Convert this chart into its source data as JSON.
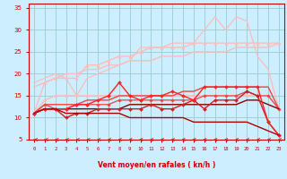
{
  "title": "",
  "xlabel": "Vent moyen/en rafales ( kn/h )",
  "bg_color": "#cceeff",
  "grid_color": "#99cccc",
  "ylim": [
    5,
    36
  ],
  "yticks": [
    5,
    10,
    15,
    20,
    25,
    30,
    35
  ],
  "x_ticks": [
    0,
    1,
    2,
    3,
    4,
    5,
    6,
    7,
    8,
    9,
    10,
    11,
    12,
    13,
    14,
    15,
    16,
    17,
    18,
    19,
    20,
    21,
    22,
    23
  ],
  "lines": [
    {
      "x": [
        0,
        1,
        2,
        3,
        4,
        5,
        6,
        7,
        8,
        9,
        10,
        11,
        12,
        13,
        14,
        15,
        16,
        17,
        18,
        19,
        20,
        21,
        22,
        23
      ],
      "y": [
        17,
        18,
        19,
        20,
        20,
        21,
        21,
        22,
        22,
        23,
        23,
        23,
        24,
        24,
        24,
        25,
        25,
        25,
        25,
        26,
        26,
        26,
        26,
        27
      ],
      "color": "#ffbbbb",
      "lw": 1.0,
      "marker": null
    },
    {
      "x": [
        0,
        1,
        2,
        3,
        4,
        5,
        6,
        7,
        8,
        9,
        10,
        11,
        12,
        13,
        14,
        15,
        16,
        17,
        18,
        19,
        20,
        21,
        22,
        23
      ],
      "y": [
        11,
        18,
        19,
        19,
        19,
        22,
        22,
        23,
        24,
        24,
        25,
        26,
        26,
        26,
        26,
        27,
        27,
        27,
        27,
        27,
        27,
        27,
        27,
        27
      ],
      "color": "#ffbbbb",
      "lw": 1.0,
      "marker": "^",
      "ms": 2.5
    },
    {
      "x": [
        0,
        1,
        2,
        3,
        4,
        5,
        6,
        7,
        8,
        9,
        10,
        11,
        12,
        13,
        14,
        15,
        16,
        17,
        18,
        19,
        20,
        21,
        22,
        23
      ],
      "y": [
        18,
        19,
        20,
        19,
        15,
        19,
        20,
        21,
        22,
        23,
        26,
        26,
        26,
        27,
        27,
        27,
        30,
        33,
        30,
        33,
        32,
        24,
        21,
        12
      ],
      "color": "#ffbbbb",
      "lw": 0.9,
      "marker": null
    },
    {
      "x": [
        0,
        1,
        2,
        3,
        4,
        5,
        6,
        7,
        8,
        9,
        10,
        11,
        12,
        13,
        14,
        15,
        16,
        17,
        18,
        19,
        20,
        21,
        22,
        23
      ],
      "y": [
        11,
        14,
        15,
        15,
        15,
        15,
        15,
        15,
        15,
        15,
        15,
        15,
        15,
        15,
        15,
        15,
        15,
        15,
        15,
        15,
        15,
        15,
        15,
        12
      ],
      "color": "#ffbbbb",
      "lw": 1.0,
      "marker": "o",
      "ms": 2
    },
    {
      "x": [
        0,
        1,
        2,
        3,
        4,
        5,
        6,
        7,
        8,
        9,
        10,
        11,
        12,
        13,
        14,
        15,
        16,
        17,
        18,
        19,
        20,
        21,
        22,
        23
      ],
      "y": [
        11,
        13,
        13,
        13,
        13,
        14,
        14,
        14,
        15,
        15,
        15,
        15,
        15,
        15,
        16,
        16,
        17,
        17,
        17,
        17,
        17,
        17,
        17,
        12
      ],
      "color": "#ee4444",
      "lw": 1.0,
      "marker": null
    },
    {
      "x": [
        0,
        1,
        2,
        3,
        4,
        5,
        6,
        7,
        8,
        9,
        10,
        11,
        12,
        13,
        14,
        15,
        16,
        17,
        18,
        19,
        20,
        21,
        22,
        23
      ],
      "y": [
        11,
        13,
        12,
        12,
        13,
        13,
        13,
        13,
        14,
        14,
        14,
        14,
        14,
        14,
        14,
        14,
        15,
        15,
        15,
        15,
        16,
        15,
        15,
        12
      ],
      "color": "#ee4444",
      "lw": 0.9,
      "marker": "D",
      "ms": 1.8
    },
    {
      "x": [
        0,
        1,
        2,
        3,
        4,
        5,
        6,
        7,
        8,
        9,
        10,
        11,
        12,
        13,
        14,
        15,
        16,
        17,
        18,
        19,
        20,
        21,
        22,
        23
      ],
      "y": [
        11,
        12,
        12,
        12,
        12,
        12,
        12,
        12,
        12,
        13,
        13,
        13,
        13,
        13,
        13,
        13,
        13,
        13,
        13,
        13,
        14,
        14,
        13,
        12
      ],
      "color": "#880000",
      "lw": 1.0,
      "marker": null
    },
    {
      "x": [
        0,
        1,
        2,
        3,
        4,
        5,
        6,
        7,
        8,
        9,
        10,
        11,
        12,
        13,
        14,
        15,
        16,
        17,
        18,
        19,
        20,
        21,
        22,
        23
      ],
      "y": [
        11,
        12,
        12,
        10,
        11,
        11,
        12,
        12,
        12,
        12,
        12,
        13,
        12,
        12,
        13,
        14,
        12,
        14,
        14,
        14,
        16,
        15,
        9,
        6
      ],
      "color": "#cc2222",
      "lw": 1.0,
      "marker": "D",
      "ms": 2
    },
    {
      "x": [
        0,
        1,
        2,
        3,
        4,
        5,
        6,
        7,
        8,
        9,
        10,
        11,
        12,
        13,
        14,
        15,
        16,
        17,
        18,
        19,
        20,
        21,
        22,
        23
      ],
      "y": [
        11,
        12,
        12,
        12,
        13,
        13,
        14,
        15,
        18,
        15,
        14,
        15,
        15,
        16,
        15,
        14,
        17,
        17,
        17,
        17,
        17,
        17,
        9,
        6
      ],
      "color": "#ff2222",
      "lw": 1.0,
      "marker": "D",
      "ms": 2
    },
    {
      "x": [
        0,
        1,
        2,
        3,
        4,
        5,
        6,
        7,
        8,
        9,
        10,
        11,
        12,
        13,
        14,
        15,
        16,
        17,
        18,
        19,
        20,
        21,
        22,
        23
      ],
      "y": [
        11,
        12,
        12,
        11,
        11,
        11,
        11,
        11,
        11,
        10,
        10,
        10,
        10,
        10,
        10,
        9,
        9,
        9,
        9,
        9,
        9,
        8,
        7,
        6
      ],
      "color": "#aa0000",
      "lw": 1.0,
      "marker": null
    }
  ],
  "arrow_color": "#cc2222"
}
